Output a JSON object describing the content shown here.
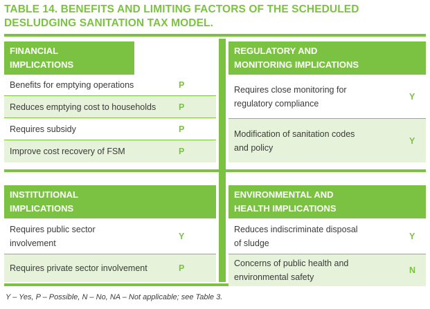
{
  "title": "TABLE 14. BENEFITS AND LIMITING FACTORS OF THE SCHEDULED DESLUDGING SANITATION TAX MODEL.",
  "panels": {
    "financial": {
      "heading": "FINANCIAL IMPLICATIONS",
      "rows": [
        {
          "label": "Benefits for emptying operations",
          "value": "P"
        },
        {
          "label": "Reduces emptying cost to households",
          "value": "P"
        },
        {
          "label": "Requires subsidy",
          "value": "P"
        },
        {
          "label": "Improve cost recovery of FSM",
          "value": "P"
        }
      ]
    },
    "regulatory": {
      "heading": "REGULATORY AND MONITORING IMPLICATIONS",
      "rows": [
        {
          "label": "Requires close monitoring for regulatory compliance",
          "value": "Y"
        },
        {
          "label": "Modification of sanitation codes and policy",
          "value": "Y"
        }
      ]
    },
    "institutional": {
      "heading": "INSTITUTIONAL IMPLICATIONS",
      "rows": [
        {
          "label": "Requires public sector involvement",
          "value": "Y"
        },
        {
          "label": "Requires private sector involvement",
          "value": "P"
        }
      ]
    },
    "environmental": {
      "heading": "ENVIRONMENTAL AND HEALTH IMPLICATIONS",
      "rows": [
        {
          "label": "Reduces indiscriminate disposal of sludge",
          "value": "Y"
        },
        {
          "label": "Concerns of public health and environmental safety",
          "value": "N"
        }
      ]
    }
  },
  "footnote": "Y – Yes, P – Possible, N – No, NA – Not applicable; see Table 3.",
  "colors": {
    "accent": "#7cc242",
    "shade": "#e6f2d9"
  }
}
